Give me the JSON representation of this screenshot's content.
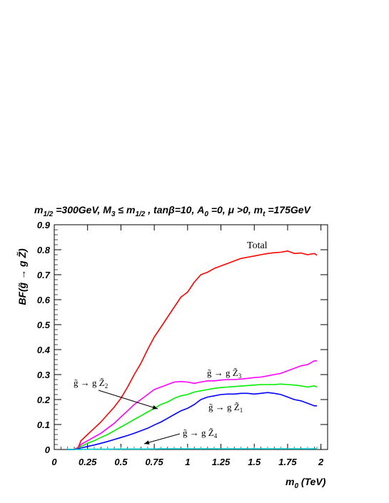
{
  "chart_data": {
    "type": "line",
    "title": "m1/2 =300GeV, M3 ≤ m1/2 , tanβ=10, A0 =0, μ >0, mt =175GeV",
    "title_parts": {
      "m12": "m",
      "m12_sub": "1/2",
      "m12_val": " =300GeV, ",
      "M3": "M",
      "M3_sub": "3",
      "M3_rel": " ≤ m",
      "M3_rel_sub": "1/2",
      "tanb": " , tanβ=10, ",
      "A0": "A",
      "A0_sub": "0",
      "A0_val": " =0, ",
      "mu": "μ >0, ",
      "mt": "m",
      "mt_sub": "t",
      "mt_val": " =175GeV"
    },
    "xlabel": "m0 (TeV)",
    "xlabel_parts": {
      "m": "m",
      "sub": "0",
      "rest": " (TeV)"
    },
    "ylabel": "BF(g̃ → g Z̃)",
    "ylabel_parts": {
      "pre": "BF(g̃ → g Z̃)"
    },
    "xlim": [
      0,
      2.05
    ],
    "ylim": [
      0,
      0.9
    ],
    "xticks": [
      "0",
      "0.25",
      "0.5",
      "0.75",
      "1",
      "1.25",
      "1.5",
      "1.75",
      "2"
    ],
    "yticks": [
      "0",
      "0.1",
      "0.2",
      "0.3",
      "0.4",
      "0.5",
      "0.6",
      "0.7",
      "0.8",
      "0.9"
    ],
    "grid": false,
    "legend": "none",
    "annotations": {
      "total": "Total",
      "z1": {
        "g": "g̃",
        "arrow": " → g ",
        "z": "Z̃",
        "sub": "1"
      },
      "z2": {
        "g": "g̃",
        "arrow": " → g ",
        "z": "Z̃",
        "sub": "2"
      },
      "z3": {
        "g": "g̃",
        "arrow": " → g ",
        "z": "Z̃",
        "sub": "3"
      },
      "z4": {
        "g": "g̃",
        "arrow": " → g ",
        "z": "Z̃",
        "sub": "4"
      }
    },
    "series": [
      {
        "key": "total",
        "color": "#ff0000",
        "x": [
          0.1,
          0.15,
          0.18,
          0.2,
          0.25,
          0.3,
          0.35,
          0.4,
          0.45,
          0.5,
          0.55,
          0.6,
          0.65,
          0.7,
          0.75,
          0.8,
          0.85,
          0.9,
          0.95,
          1.0,
          1.05,
          1.1,
          1.15,
          1.2,
          1.25,
          1.3,
          1.35,
          1.4,
          1.45,
          1.5,
          1.55,
          1.6,
          1.65,
          1.7,
          1.75,
          1.8,
          1.85,
          1.9,
          1.95,
          1.97
        ],
        "y": [
          0.0,
          0.0,
          0.008,
          0.035,
          0.06,
          0.085,
          0.11,
          0.14,
          0.17,
          0.205,
          0.25,
          0.3,
          0.345,
          0.4,
          0.45,
          0.49,
          0.53,
          0.57,
          0.61,
          0.63,
          0.67,
          0.7,
          0.71,
          0.725,
          0.735,
          0.745,
          0.755,
          0.765,
          0.77,
          0.775,
          0.78,
          0.785,
          0.788,
          0.79,
          0.795,
          0.785,
          0.787,
          0.78,
          0.785,
          0.778
        ]
      },
      {
        "key": "z3",
        "color": "#ff00ff",
        "x": [
          0.1,
          0.15,
          0.18,
          0.2,
          0.25,
          0.3,
          0.35,
          0.4,
          0.45,
          0.5,
          0.55,
          0.6,
          0.65,
          0.7,
          0.75,
          0.8,
          0.85,
          0.9,
          0.95,
          1.0,
          1.05,
          1.1,
          1.15,
          1.2,
          1.25,
          1.3,
          1.35,
          1.4,
          1.45,
          1.5,
          1.55,
          1.6,
          1.65,
          1.7,
          1.75,
          1.8,
          1.85,
          1.9,
          1.95,
          1.97
        ],
        "y": [
          0.0,
          0.0,
          0.005,
          0.02,
          0.035,
          0.05,
          0.065,
          0.085,
          0.105,
          0.13,
          0.155,
          0.18,
          0.2,
          0.22,
          0.24,
          0.25,
          0.26,
          0.27,
          0.272,
          0.27,
          0.265,
          0.27,
          0.275,
          0.275,
          0.278,
          0.28,
          0.28,
          0.282,
          0.285,
          0.288,
          0.29,
          0.295,
          0.3,
          0.305,
          0.315,
          0.325,
          0.335,
          0.34,
          0.355,
          0.355
        ]
      },
      {
        "key": "z2",
        "color": "#00ee00",
        "x": [
          0.1,
          0.15,
          0.18,
          0.2,
          0.25,
          0.3,
          0.35,
          0.4,
          0.45,
          0.5,
          0.55,
          0.6,
          0.65,
          0.7,
          0.75,
          0.8,
          0.85,
          0.9,
          0.95,
          1.0,
          1.05,
          1.1,
          1.15,
          1.2,
          1.25,
          1.3,
          1.35,
          1.4,
          1.45,
          1.5,
          1.55,
          1.6,
          1.65,
          1.7,
          1.75,
          1.8,
          1.85,
          1.9,
          1.95,
          1.97
        ],
        "y": [
          0.0,
          0.0,
          0.003,
          0.012,
          0.025,
          0.035,
          0.048,
          0.06,
          0.075,
          0.09,
          0.105,
          0.12,
          0.135,
          0.15,
          0.165,
          0.18,
          0.19,
          0.205,
          0.215,
          0.22,
          0.23,
          0.235,
          0.24,
          0.245,
          0.248,
          0.25,
          0.252,
          0.254,
          0.256,
          0.258,
          0.26,
          0.26,
          0.26,
          0.262,
          0.26,
          0.258,
          0.255,
          0.25,
          0.255,
          0.25
        ]
      },
      {
        "key": "z1",
        "color": "#0000ff",
        "x": [
          0.1,
          0.15,
          0.18,
          0.2,
          0.25,
          0.3,
          0.35,
          0.4,
          0.45,
          0.5,
          0.55,
          0.6,
          0.65,
          0.7,
          0.75,
          0.8,
          0.85,
          0.9,
          0.95,
          1.0,
          1.05,
          1.1,
          1.15,
          1.2,
          1.25,
          1.3,
          1.35,
          1.4,
          1.45,
          1.5,
          1.55,
          1.6,
          1.65,
          1.7,
          1.75,
          1.8,
          1.85,
          1.9,
          1.95,
          1.97
        ],
        "y": [
          0.0,
          0.0,
          0.002,
          0.006,
          0.012,
          0.018,
          0.025,
          0.032,
          0.04,
          0.048,
          0.056,
          0.065,
          0.075,
          0.085,
          0.098,
          0.11,
          0.125,
          0.14,
          0.155,
          0.165,
          0.18,
          0.2,
          0.21,
          0.215,
          0.22,
          0.222,
          0.222,
          0.225,
          0.225,
          0.222,
          0.225,
          0.228,
          0.225,
          0.22,
          0.21,
          0.2,
          0.195,
          0.185,
          0.175,
          0.175
        ]
      },
      {
        "key": "z4",
        "color": "#00cccc",
        "x": [
          0.1,
          0.2,
          0.3,
          0.4,
          0.5,
          0.6,
          0.7,
          0.8,
          0.9,
          1.0,
          1.1,
          1.2,
          1.3,
          1.4,
          1.5,
          1.6,
          1.7,
          1.8,
          1.9,
          1.97
        ],
        "y": [
          0.0,
          0.0,
          0.001,
          0.001,
          0.002,
          0.002,
          0.002,
          0.003,
          0.003,
          0.003,
          0.003,
          0.003,
          0.003,
          0.003,
          0.003,
          0.003,
          0.003,
          0.003,
          0.003,
          0.003
        ]
      }
    ]
  }
}
